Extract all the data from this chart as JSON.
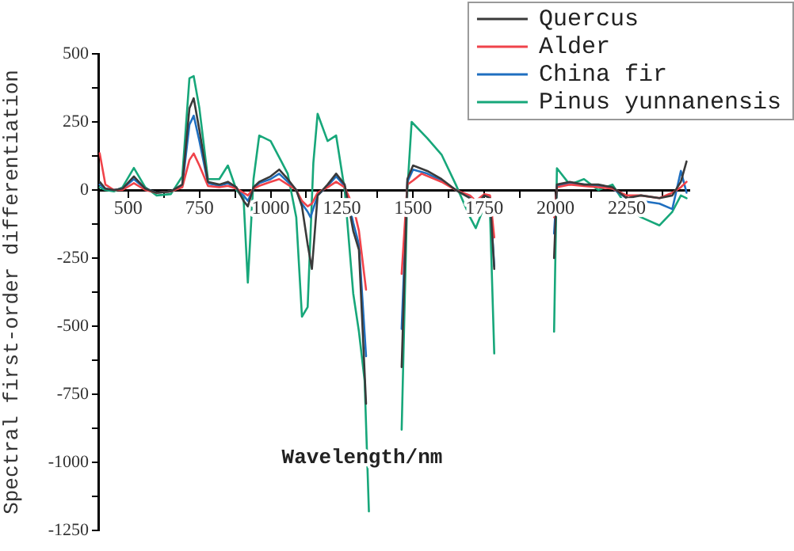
{
  "chart_data": {
    "type": "line",
    "xlabel": "Wavelength/nm",
    "ylabel": "Spectral first-order differentiation",
    "xlim": [
      395,
      2470
    ],
    "ylim": [
      -1250,
      500
    ],
    "xticks": [
      500,
      {
        "value": 625,
        "label": null
      },
      750,
      {
        "value": 875,
        "label": null
      },
      1000,
      {
        "value": 1125,
        "label": null
      },
      1250,
      {
        "value": 1375,
        "label": null
      },
      1500,
      {
        "value": 1625,
        "label": null
      },
      1750,
      {
        "value": 1875,
        "label": null
      },
      2000,
      {
        "value": 2125,
        "label": null
      },
      2250,
      {
        "value": 2375,
        "label": null
      }
    ],
    "yticks": [
      -1250,
      {
        "value": -1125,
        "label": null
      },
      -1000,
      {
        "value": -875,
        "label": null
      },
      -750,
      {
        "value": -625,
        "label": null
      },
      -500,
      {
        "value": -375,
        "label": null
      },
      -250,
      {
        "value": -125,
        "label": null
      },
      0,
      {
        "value": 125,
        "label": null
      },
      250,
      {
        "value": 375,
        "label": null
      },
      500
    ],
    "grid": false,
    "legend": "top right",
    "marker": "none",
    "line_style": "solid",
    "series": [
      {
        "name": "Quercus",
        "color": "#3a3a3a",
        "x": [
          400,
          420,
          450,
          480,
          520,
          560,
          600,
          650,
          690,
          715,
          730,
          750,
          780,
          820,
          850,
          880,
          905,
          920,
          940,
          960,
          1000,
          1030,
          1060,
          1090,
          1110,
          1130,
          1145,
          1165,
          1200,
          1230,
          1260,
          1290,
          1310,
          1335,
          1400,
          1460,
          1480,
          1500,
          1550,
          1600,
          1650,
          1700,
          1720,
          1750,
          1770,
          1785,
          1900,
          1995,
          2005,
          2050,
          2100,
          2150,
          2200,
          2250,
          2300,
          2365,
          2410,
          2440,
          2460
        ],
        "values": [
          30,
          5,
          0,
          5,
          50,
          5,
          -10,
          -5,
          20,
          300,
          337,
          220,
          30,
          20,
          30,
          10,
          -40,
          -60,
          10,
          30,
          50,
          75,
          40,
          0,
          -60,
          -200,
          -290,
          -20,
          20,
          60,
          20,
          -150,
          -220,
          -785,
          null,
          -650,
          40,
          90,
          70,
          40,
          0,
          -30,
          -60,
          -20,
          -30,
          -290,
          null,
          -250,
          20,
          30,
          20,
          20,
          10,
          -30,
          -20,
          -30,
          -20,
          30,
          105
        ]
      },
      {
        "name": "Alder",
        "color": "#f0434a",
        "x": [
          400,
          420,
          450,
          480,
          520,
          560,
          600,
          650,
          690,
          715,
          730,
          750,
          780,
          820,
          850,
          880,
          905,
          920,
          940,
          960,
          1000,
          1030,
          1060,
          1090,
          1110,
          1130,
          1145,
          1165,
          1200,
          1230,
          1260,
          1290,
          1310,
          1335,
          1400,
          1460,
          1480,
          1500,
          1530,
          1600,
          1650,
          1700,
          1720,
          1750,
          1770,
          1785,
          1900,
          1995,
          2005,
          2050,
          2100,
          2150,
          2200,
          2250,
          2300,
          2365,
          2410,
          2440,
          2460
        ],
        "values": [
          135,
          20,
          0,
          0,
          25,
          0,
          -10,
          -5,
          10,
          110,
          134,
          90,
          15,
          10,
          15,
          5,
          -10,
          -20,
          5,
          15,
          30,
          40,
          20,
          0,
          -40,
          -60,
          -50,
          -10,
          10,
          30,
          10,
          -60,
          -150,
          -366,
          null,
          -308,
          20,
          35,
          60,
          30,
          0,
          -20,
          -40,
          -15,
          -20,
          -174,
          null,
          -100,
          10,
          20,
          15,
          10,
          5,
          -20,
          -20,
          -30,
          -10,
          10,
          30
        ]
      },
      {
        "name": "China fir",
        "color": "#1f6fc0",
        "x": [
          400,
          420,
          450,
          480,
          520,
          560,
          600,
          650,
          690,
          715,
          730,
          750,
          780,
          820,
          850,
          880,
          905,
          920,
          940,
          960,
          1000,
          1030,
          1060,
          1090,
          1110,
          1130,
          1140,
          1165,
          1200,
          1230,
          1260,
          1290,
          1310,
          1335,
          1400,
          1460,
          1480,
          1500,
          1550,
          1600,
          1650,
          1700,
          1720,
          1750,
          1770,
          1785,
          1900,
          1995,
          2005,
          2050,
          2100,
          2150,
          2200,
          2250,
          2300,
          2365,
          2410,
          2440,
          2460
        ],
        "values": [
          20,
          5,
          0,
          5,
          40,
          5,
          -10,
          -5,
          15,
          240,
          273,
          180,
          25,
          15,
          25,
          5,
          -20,
          -40,
          5,
          25,
          40,
          60,
          30,
          0,
          -50,
          -80,
          -100,
          -20,
          15,
          50,
          15,
          -120,
          -200,
          -610,
          null,
          -510,
          30,
          75,
          60,
          35,
          0,
          -25,
          -50,
          -20,
          -25,
          -280,
          null,
          -160,
          15,
          25,
          20,
          15,
          5,
          -30,
          -40,
          -50,
          -70,
          70,
          -10
        ]
      },
      {
        "name": "Pinus yunnanensis",
        "color": "#17a77a",
        "x": [
          400,
          420,
          450,
          480,
          520,
          560,
          600,
          650,
          690,
          715,
          730,
          750,
          780,
          820,
          850,
          880,
          905,
          920,
          940,
          960,
          1000,
          1030,
          1060,
          1090,
          1110,
          1130,
          1150,
          1165,
          1200,
          1230,
          1260,
          1290,
          1310,
          1330,
          1345,
          1400,
          1460,
          1480,
          1495,
          1550,
          1600,
          1650,
          1700,
          1720,
          1750,
          1770,
          1785,
          1900,
          1995,
          2005,
          2050,
          2100,
          2150,
          2200,
          2250,
          2300,
          2365,
          2410,
          2440,
          2460
        ],
        "values": [
          10,
          0,
          -5,
          10,
          81,
          10,
          -20,
          -15,
          50,
          410,
          418,
          300,
          40,
          40,
          90,
          0,
          -30,
          -340,
          40,
          200,
          180,
          120,
          60,
          -100,
          -465,
          -430,
          100,
          280,
          180,
          200,
          0,
          -380,
          -520,
          -700,
          -1180,
          null,
          -880,
          0,
          250,
          190,
          130,
          20,
          -100,
          -140,
          -60,
          -80,
          -600,
          null,
          -520,
          80,
          20,
          40,
          0,
          20,
          -60,
          -100,
          -130,
          -80,
          -20,
          -30
        ]
      }
    ]
  }
}
